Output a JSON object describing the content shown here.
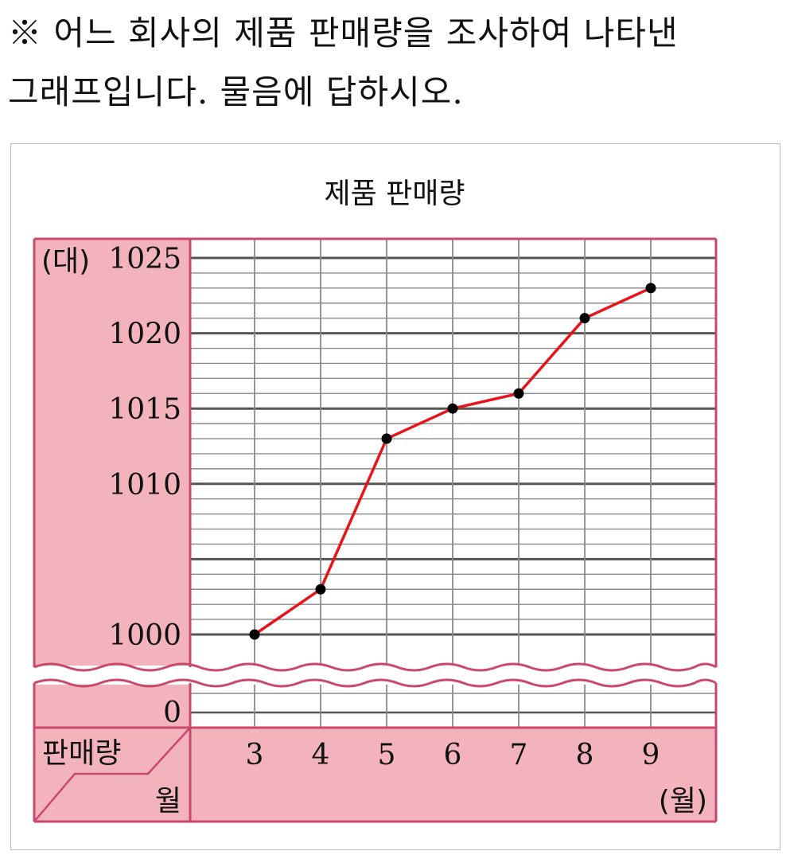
{
  "question": {
    "line1": "※ 어느 회사의 제품 판매량을 조사하여 나타낸",
    "line2": "그래프입니다. 물음에 답하시오."
  },
  "chart_data": {
    "type": "line",
    "title": "제품 판매량",
    "y_unit": "(대)",
    "x_unit": "(월)",
    "corner_top_label": "판매량",
    "corner_bottom_label": "월",
    "x": [
      3,
      4,
      5,
      6,
      7,
      8,
      9
    ],
    "values": [
      1000,
      1003,
      1013,
      1015,
      1016,
      1021,
      1023
    ],
    "y_ticks": [
      1000,
      1010,
      1015,
      1020,
      1025
    ],
    "y_tick_labels": [
      "1000",
      "1010",
      "1015",
      "1020",
      "1025"
    ],
    "y_zero_label": "0",
    "ylim": [
      1000,
      1025
    ],
    "axis_break": true,
    "grid": true,
    "colors": {
      "line": "#e8141b",
      "marker": "#000000",
      "panel_fill": "#f3b3bc",
      "panel_border": "#c9486c",
      "grid_major": "#555555",
      "grid_minor": "#8a8a8a"
    }
  }
}
